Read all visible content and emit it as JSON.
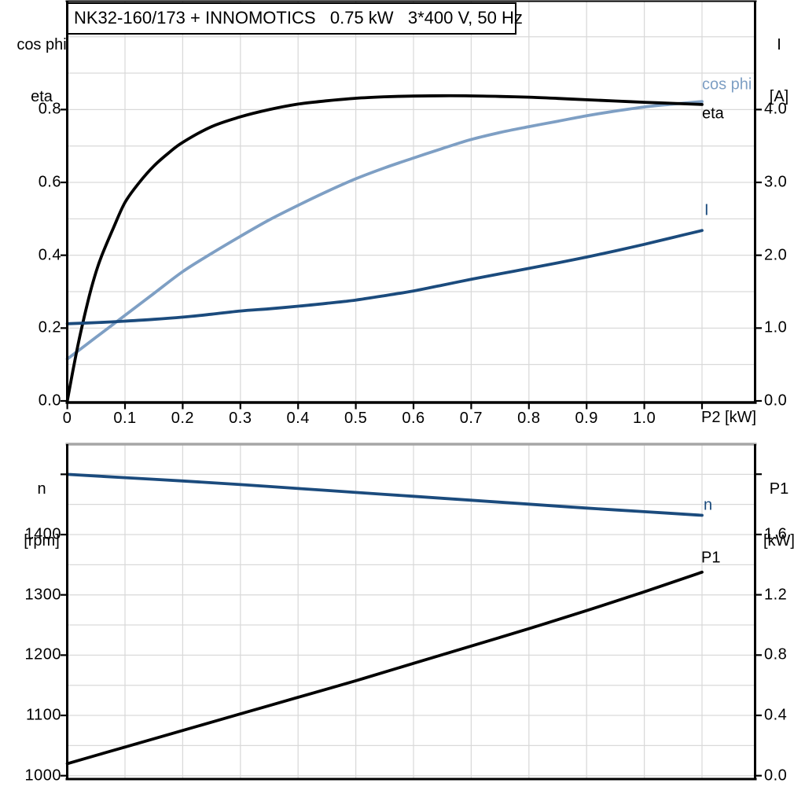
{
  "title_box": {
    "text": "NK32-160/173 + INNOMOTICS   0.75 kW   3*400 V, 50 Hz"
  },
  "colors": {
    "light_blue": "#7e9fc4",
    "dark_blue": "#1b4b7d",
    "black": "#000000",
    "grid": "#d9d9d9",
    "gray_border": "#a6a6a6",
    "background": "#ffffff"
  },
  "axis_corner_labels": {
    "top_left_line1": "cos phi",
    "top_left_line2": "eta",
    "top_right_line1": "I",
    "top_right_line2": "[A]",
    "bottom_left_line1": "n",
    "bottom_left_line2": "[rpm]",
    "bottom_right_line1": "P1",
    "bottom_right_line2": "[kW]"
  },
  "x_axis_unit_label": "P2 [kW]",
  "curve_labels": {
    "cos_phi": "cos phi",
    "eta": "eta",
    "current": "I",
    "speed": "n",
    "power_in": "P1"
  },
  "chart_data": [
    {
      "id": "top",
      "type": "line",
      "title": "NK32-160/173 + INNOMOTICS 0.75 kW 3*400 V, 50 Hz",
      "xlabel": "P2 [kW]",
      "x_range": [
        0,
        1.19
      ],
      "left_axis_label": "cos phi, eta",
      "right_axis_label": "I [A]",
      "left_range": [
        0,
        1.1
      ],
      "right_range": [
        0,
        5.5
      ],
      "grid": true,
      "x_ticks": [
        {
          "v": 0,
          "label": "0"
        },
        {
          "v": 0.1,
          "label": "0.1"
        },
        {
          "v": 0.2,
          "label": "0.2"
        },
        {
          "v": 0.3,
          "label": "0.3"
        },
        {
          "v": 0.4,
          "label": "0.4"
        },
        {
          "v": 0.5,
          "label": "0.5"
        },
        {
          "v": 0.6,
          "label": "0.6"
        },
        {
          "v": 0.7,
          "label": "0.7"
        },
        {
          "v": 0.8,
          "label": "0.8"
        },
        {
          "v": 0.9,
          "label": "0.9"
        },
        {
          "v": 1.0,
          "label": "1.0"
        },
        {
          "v": 1.1,
          "label": ""
        }
      ],
      "x_grid": [
        0.1,
        0.2,
        0.3,
        0.4,
        0.5,
        0.6,
        0.7,
        0.8,
        0.9,
        1.0,
        1.1
      ],
      "left_ticks": [
        {
          "v": 0.0,
          "label": "0.0"
        },
        {
          "v": 0.2,
          "label": "0.2"
        },
        {
          "v": 0.4,
          "label": "0.4"
        },
        {
          "v": 0.6,
          "label": "0.6"
        },
        {
          "v": 0.8,
          "label": "0.8"
        }
      ],
      "left_grid": [
        0.1,
        0.2,
        0.3,
        0.4,
        0.5,
        0.6,
        0.7,
        0.8,
        0.9,
        1.0
      ],
      "right_ticks": [
        {
          "v": 0.0,
          "label": "0.0"
        },
        {
          "v": 1.0,
          "label": "1.0"
        },
        {
          "v": 2.0,
          "label": "2.0"
        },
        {
          "v": 3.0,
          "label": "3.0"
        },
        {
          "v": 4.0,
          "label": "4.0"
        }
      ],
      "series": [
        {
          "name": "cos phi",
          "axis": "left",
          "color_key": "light_blue",
          "x": [
            0,
            0.05,
            0.1,
            0.15,
            0.2,
            0.25,
            0.3,
            0.35,
            0.4,
            0.45,
            0.5,
            0.55,
            0.6,
            0.65,
            0.7,
            0.75,
            0.8,
            0.85,
            0.9,
            0.95,
            1.0,
            1.05,
            1.1
          ],
          "y": [
            0.115,
            0.175,
            0.235,
            0.295,
            0.355,
            0.405,
            0.452,
            0.497,
            0.537,
            0.575,
            0.61,
            0.64,
            0.667,
            0.693,
            0.718,
            0.737,
            0.753,
            0.768,
            0.783,
            0.796,
            0.807,
            0.815,
            0.822
          ]
        },
        {
          "name": "eta",
          "axis": "left",
          "color_key": "black",
          "x": [
            0,
            0.01,
            0.02,
            0.03,
            0.04,
            0.05,
            0.06,
            0.08,
            0.1,
            0.125,
            0.15,
            0.175,
            0.2,
            0.25,
            0.3,
            0.35,
            0.4,
            0.45,
            0.5,
            0.55,
            0.6,
            0.65,
            0.7,
            0.75,
            0.8,
            0.85,
            0.9,
            0.95,
            1.0,
            1.05,
            1.1
          ],
          "y": [
            0,
            0.085,
            0.165,
            0.235,
            0.3,
            0.355,
            0.4,
            0.475,
            0.545,
            0.6,
            0.645,
            0.68,
            0.71,
            0.753,
            0.78,
            0.8,
            0.815,
            0.824,
            0.831,
            0.835,
            0.837,
            0.838,
            0.8375,
            0.836,
            0.834,
            0.8305,
            0.827,
            0.8235,
            0.82,
            0.817,
            0.814
          ]
        },
        {
          "name": "I",
          "axis": "right",
          "color_key": "dark_blue",
          "x": [
            0,
            0.05,
            0.1,
            0.15,
            0.2,
            0.25,
            0.3,
            0.35,
            0.4,
            0.45,
            0.5,
            0.55,
            0.6,
            0.65,
            0.7,
            0.75,
            0.8,
            0.85,
            0.9,
            0.95,
            1.0,
            1.05,
            1.1
          ],
          "y": [
            1.06,
            1.075,
            1.095,
            1.12,
            1.15,
            1.19,
            1.235,
            1.265,
            1.3,
            1.34,
            1.385,
            1.445,
            1.51,
            1.59,
            1.67,
            1.745,
            1.82,
            1.895,
            1.975,
            2.06,
            2.15,
            2.245,
            2.34
          ]
        }
      ]
    },
    {
      "id": "bottom",
      "type": "line",
      "title": "",
      "xlabel": "P2 [kW]",
      "x_range": [
        0,
        1.19
      ],
      "left_axis_label": "n [rpm]",
      "right_axis_label": "P1 [kW]",
      "left_range": [
        994,
        1550
      ],
      "right_range": [
        0,
        2.2
      ],
      "grid": true,
      "x_ticks": [],
      "x_grid": [
        0.1,
        0.2,
        0.3,
        0.4,
        0.5,
        0.6,
        0.7,
        0.8,
        0.9,
        1.0,
        1.1
      ],
      "left_ticks": [
        {
          "v": 1000,
          "label": "1000"
        },
        {
          "v": 1100,
          "label": "1100"
        },
        {
          "v": 1200,
          "label": "1200"
        },
        {
          "v": 1300,
          "label": "1300"
        },
        {
          "v": 1400,
          "label": "1400"
        },
        {
          "v": 1500,
          "label": ""
        }
      ],
      "left_grid": [
        1000,
        1050,
        1100,
        1150,
        1200,
        1250,
        1300,
        1350,
        1400,
        1450,
        1500
      ],
      "right_ticks": [
        {
          "v": 0.0,
          "label": "0.0"
        },
        {
          "v": 0.4,
          "label": "0.4"
        },
        {
          "v": 0.8,
          "label": "0.8"
        },
        {
          "v": 1.2,
          "label": "1.2"
        },
        {
          "v": 1.6,
          "label": "1.6"
        },
        {
          "v": 2.0,
          "label": ""
        }
      ],
      "series": [
        {
          "name": "n",
          "axis": "left",
          "color_key": "dark_blue",
          "x": [
            0,
            0.1,
            0.2,
            0.3,
            0.4,
            0.5,
            0.6,
            0.7,
            0.8,
            0.9,
            1.0,
            1.1
          ],
          "y": [
            1500,
            1494.5,
            1489,
            1483,
            1476.5,
            1470,
            1463.5,
            1457,
            1450.5,
            1444,
            1438,
            1432
          ]
        },
        {
          "name": "P1",
          "axis": "right",
          "color_key": "black",
          "x": [
            0,
            0.1,
            0.2,
            0.3,
            0.4,
            0.5,
            0.6,
            0.7,
            0.8,
            0.9,
            1.0,
            1.1
          ],
          "y": [
            0.08,
            0.19,
            0.3,
            0.41,
            0.52,
            0.63,
            0.745,
            0.86,
            0.975,
            1.095,
            1.22,
            1.35
          ]
        }
      ]
    }
  ]
}
